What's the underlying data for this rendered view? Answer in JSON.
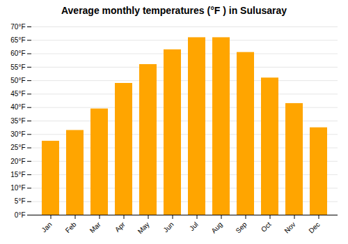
{
  "chart_data": {
    "type": "bar",
    "title": "Average monthly temperatures (°F ) in Sulusaray",
    "categories": [
      "Jan",
      "Feb",
      "Mar",
      "Apr",
      "May",
      "Jun",
      "Jul",
      "Aug",
      "Sep",
      "Oct",
      "Nov",
      "Dec"
    ],
    "values": [
      27.5,
      31.5,
      39.5,
      49.0,
      56.0,
      61.5,
      66.0,
      66.0,
      60.5,
      51.0,
      41.5,
      32.5
    ],
    "color": "#FFA500",
    "ylim": [
      0,
      70
    ],
    "yticks": [
      {
        "value": 0,
        "label": "0°F"
      },
      {
        "value": 5,
        "label": "5°F"
      },
      {
        "value": 10,
        "label": "10°F"
      },
      {
        "value": 15,
        "label": "15°F"
      },
      {
        "value": 20,
        "label": "20°F"
      },
      {
        "value": 25,
        "label": "25°F"
      },
      {
        "value": 30,
        "label": "30°F"
      },
      {
        "value": 35,
        "label": "35°F"
      },
      {
        "value": 40,
        "label": "40°F"
      },
      {
        "value": 45,
        "label": "45°F"
      },
      {
        "value": 50,
        "label": "50°F"
      },
      {
        "value": 55,
        "label": "55°F"
      },
      {
        "value": 60,
        "label": "60°F"
      },
      {
        "value": 65,
        "label": "65°F"
      },
      {
        "value": 70,
        "label": "70°F"
      }
    ],
    "grid": true
  }
}
